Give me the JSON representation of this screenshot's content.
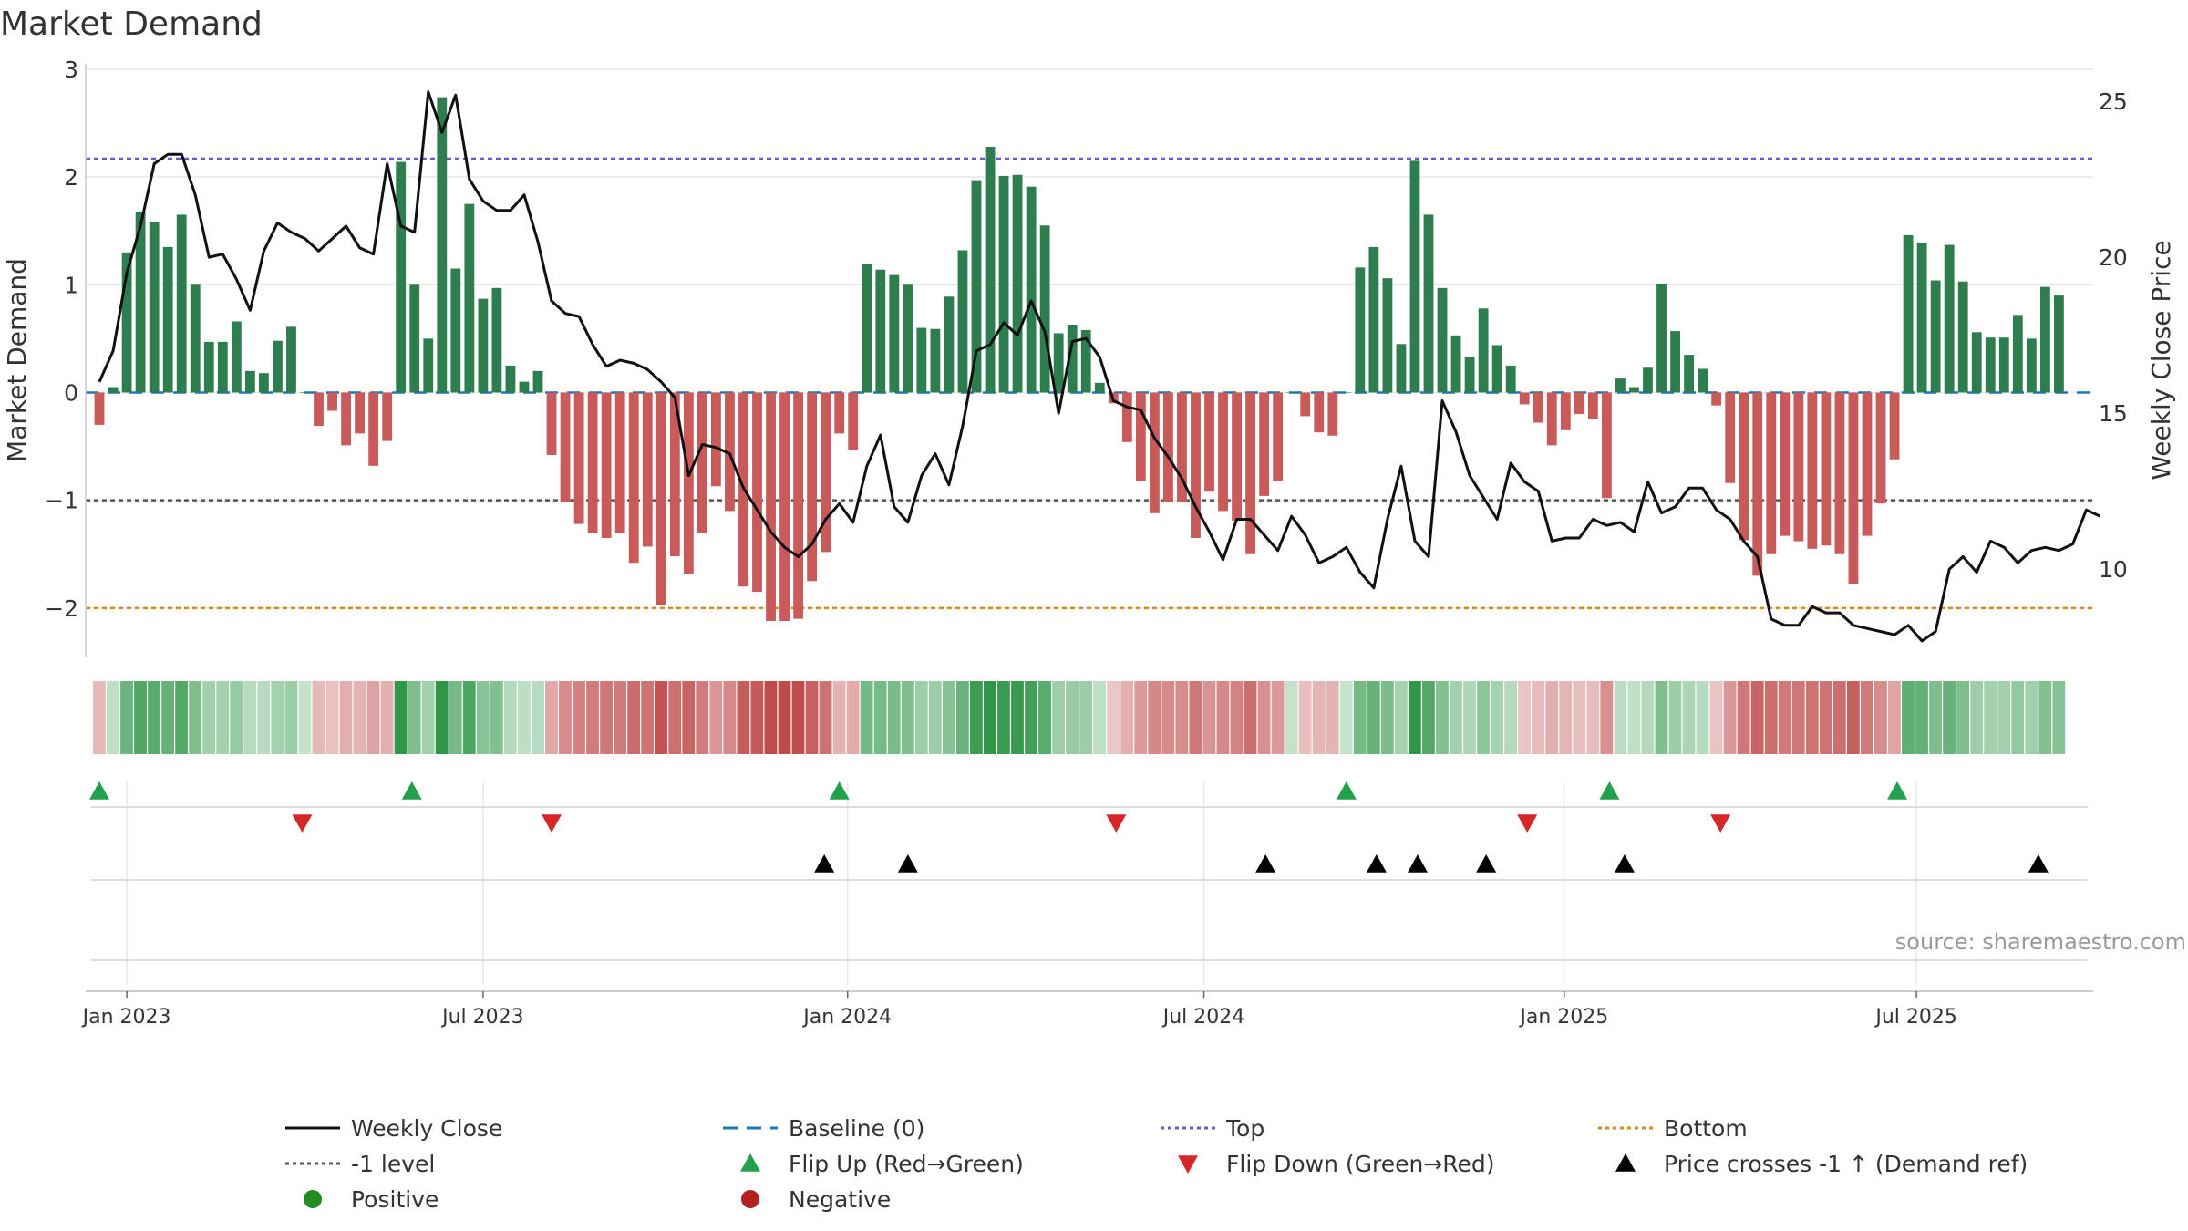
{
  "chart_data": {
    "type": "bar+line",
    "title": "Market Demand",
    "ylabel_left": "Market Demand",
    "ylabel_right": "Weekly Close Price",
    "source_note": "source: sharemaestro.com",
    "left_ylim": [
      -2.45,
      3.05
    ],
    "right_ylim": [
      7.2,
      26.2
    ],
    "left_ticks": [
      {
        "v": 3,
        "label": "3"
      },
      {
        "v": 2,
        "label": "2"
      },
      {
        "v": 1,
        "label": "1"
      },
      {
        "v": 0,
        "label": "0"
      },
      {
        "v": -1,
        "label": "−1"
      },
      {
        "v": -2,
        "label": "−2"
      }
    ],
    "right_ticks": [
      {
        "v": 25,
        "label": "25"
      },
      {
        "v": 20,
        "label": "20"
      },
      {
        "v": 15,
        "label": "15"
      },
      {
        "v": 10,
        "label": "10"
      }
    ],
    "x_start_week_offset": -3,
    "x_end_week_offset": 143.5,
    "x_ticks": [
      {
        "week": 0,
        "label": "Jan 2023"
      },
      {
        "week": 26,
        "label": "Jul 2023"
      },
      {
        "week": 52.6,
        "label": "Jan 2024"
      },
      {
        "week": 78.6,
        "label": "Jul 2024"
      },
      {
        "week": 104.9,
        "label": "Jan 2025"
      },
      {
        "week": 130.6,
        "label": "Jul 2025"
      }
    ],
    "reference_lines": {
      "top": 2.17,
      "minus_one": -1,
      "bottom": -2,
      "baseline": 0
    },
    "demand_values": [
      -0.3,
      0.05,
      1.3,
      1.68,
      1.58,
      1.35,
      1.65,
      1.0,
      0.47,
      0.47,
      0.66,
      0.2,
      0.18,
      0.48,
      0.61,
      0.0,
      -0.31,
      -0.17,
      -0.49,
      -0.38,
      -0.68,
      -0.45,
      2.14,
      1.0,
      0.5,
      2.74,
      1.15,
      1.75,
      0.87,
      0.97,
      0.25,
      0.1,
      0.2,
      -0.58,
      -1.02,
      -1.22,
      -1.3,
      -1.35,
      -1.3,
      -1.58,
      -1.43,
      -1.97,
      -1.52,
      -1.68,
      -1.3,
      -0.87,
      -1.1,
      -1.8,
      -1.85,
      -2.12,
      -2.12,
      -2.1,
      -1.75,
      -1.48,
      -0.38,
      -0.53,
      1.19,
      1.14,
      1.09,
      1.0,
      0.6,
      0.59,
      0.89,
      1.32,
      1.97,
      2.28,
      2.01,
      2.02,
      1.91,
      1.55,
      0.55,
      0.63,
      0.58,
      0.09,
      -0.1,
      -0.46,
      -0.82,
      -1.12,
      -1.02,
      -1.02,
      -1.35,
      -0.92,
      -1.1,
      -1.19,
      -1.5,
      -0.96,
      -0.82,
      0.0,
      -0.22,
      -0.37,
      -0.4,
      0.0,
      1.16,
      1.35,
      1.06,
      0.45,
      2.15,
      1.65,
      0.97,
      0.53,
      0.33,
      0.78,
      0.44,
      0.25,
      -0.11,
      -0.28,
      -0.49,
      -0.35,
      -0.2,
      -0.25,
      -0.98,
      0.13,
      0.05,
      0.23,
      1.01,
      0.57,
      0.35,
      0.22,
      -0.12,
      -0.84,
      -1.37,
      -1.7,
      -1.5,
      -1.33,
      -1.38,
      -1.45,
      -1.42,
      -1.5,
      -1.78,
      -1.33,
      -1.03,
      -0.62,
      1.46,
      1.39,
      1.04,
      1.37,
      1.03,
      0.56,
      0.51,
      0.51,
      0.72,
      0.5,
      0.98,
      0.9
    ],
    "close_values": [
      16.0,
      17.0,
      19.5,
      21.0,
      23.0,
      23.3,
      23.3,
      22.0,
      20.0,
      20.1,
      19.3,
      18.3,
      20.2,
      21.1,
      20.8,
      20.6,
      20.2,
      20.6,
      21.0,
      20.3,
      20.1,
      23.0,
      21.0,
      20.8,
      25.3,
      24.0,
      25.2,
      22.5,
      21.8,
      21.5,
      21.5,
      22.0,
      20.5,
      18.6,
      18.2,
      18.1,
      17.2,
      16.5,
      16.7,
      16.6,
      16.4,
      16.0,
      15.5,
      13.0,
      14.0,
      13.9,
      13.7,
      12.6,
      11.9,
      11.2,
      10.7,
      10.4,
      10.8,
      11.6,
      12.1,
      11.5,
      13.3,
      14.3,
      12.0,
      11.5,
      13.0,
      13.7,
      12.7,
      14.6,
      17.0,
      17.2,
      17.9,
      17.5,
      18.6,
      17.6,
      15.0,
      17.3,
      17.4,
      16.8,
      15.4,
      15.2,
      15.1,
      14.2,
      13.6,
      12.9,
      12.0,
      11.2,
      10.3,
      11.6,
      11.6,
      11.1,
      10.6,
      11.7,
      11.1,
      10.2,
      10.4,
      10.7,
      9.9,
      9.4,
      11.6,
      13.3,
      10.9,
      10.4,
      15.4,
      14.4,
      13.0,
      12.3,
      11.6,
      13.4,
      12.8,
      12.5,
      10.9,
      11.0,
      11.0,
      11.6,
      11.4,
      11.5,
      11.2,
      12.8,
      11.8,
      12.0,
      12.6,
      12.6,
      11.9,
      11.6,
      10.9,
      10.4,
      8.4,
      8.2,
      8.2,
      8.8,
      8.6,
      8.6,
      8.2,
      8.1,
      8.0,
      7.9,
      8.2,
      7.7,
      8.0,
      10.0,
      10.4,
      9.9,
      10.9,
      10.7,
      10.2,
      10.6,
      10.7,
      10.6,
      10.8,
      11.9,
      11.7
    ],
    "flip_up_weeks": [
      -2,
      20.8,
      52.0,
      89.0,
      108.2,
      129.2
    ],
    "flip_down_weeks": [
      12.8,
      31.0,
      72.2,
      102.2,
      116.3
    ],
    "price_cross_weeks": [
      50.9,
      57.0,
      83.1,
      91.2,
      94.2,
      99.2,
      109.3,
      139.5
    ],
    "legend": [
      {
        "label": "Weekly Close",
        "kind": "line",
        "color": "#111111",
        "dash": ""
      },
      {
        "label": "Baseline (0)",
        "kind": "line",
        "color": "#1f77b4",
        "dash": "16 10"
      },
      {
        "label": "Top",
        "kind": "line",
        "color": "#6a5acd",
        "dash": "4 4"
      },
      {
        "label": "Bottom",
        "kind": "line",
        "color": "#d88a1c",
        "dash": "4 4"
      },
      {
        "label": "-1 level",
        "kind": "line",
        "color": "#555555",
        "dash": "4 4"
      },
      {
        "label": "Flip Up (Red→Green)",
        "kind": "tri-up",
        "color": "#22a04b"
      },
      {
        "label": "Flip Down (Green→Red)",
        "kind": "tri-down",
        "color": "#d62728"
      },
      {
        "label": "Price crosses -1 ↑ (Demand ref)",
        "kind": "tri-up",
        "color": "#000000"
      },
      {
        "label": "Positive",
        "kind": "dot",
        "color": "#228b22"
      },
      {
        "label": "Negative",
        "kind": "dot",
        "color": "#b22222"
      }
    ],
    "colors": {
      "positive_bar": "#2e7d4f",
      "negative_bar": "#c85a5a",
      "close_line": "#111111",
      "grid": "#e8e8e8",
      "flip_up": "#22a04b",
      "flip_down": "#d62728",
      "price_cross": "#000000"
    }
  }
}
